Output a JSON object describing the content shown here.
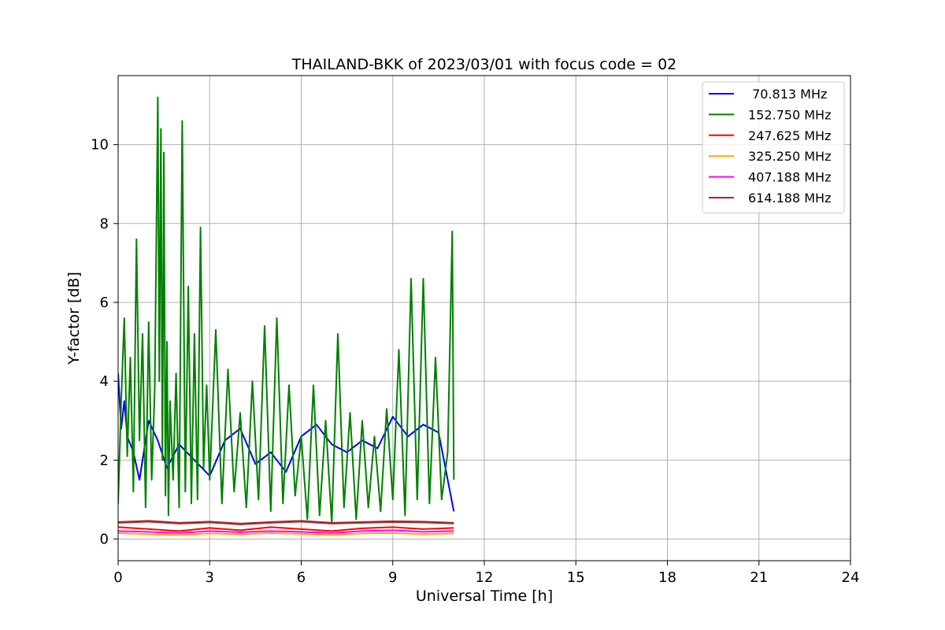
{
  "chart_data": {
    "type": "line",
    "title": "THAILAND-BKK of 2023/03/01 with focus code = 02",
    "xlabel": "Universal Time [h]",
    "ylabel": "Y-factor [dB]",
    "xlim": [
      0,
      24
    ],
    "ylim": [
      -0.55,
      11.75
    ],
    "xticks": [
      "0",
      "3",
      "6",
      "9",
      "12",
      "15",
      "18",
      "21",
      "24"
    ],
    "xtick_values": [
      0,
      3,
      6,
      9,
      12,
      15,
      18,
      21,
      24
    ],
    "yticks": [
      "0",
      "2",
      "4",
      "6",
      "8",
      "10"
    ],
    "ytick_values": [
      0,
      2,
      4,
      6,
      8,
      10
    ],
    "grid": true,
    "legend_position": "top-right",
    "series": [
      {
        "name": " 70.813 MHz",
        "color": "#0000ff",
        "x": [
          0,
          0.1,
          0.2,
          0.3,
          0.5,
          0.7,
          1.0,
          1.3,
          1.6,
          2.0,
          2.5,
          3.0,
          3.5,
          4.0,
          4.5,
          5.0,
          5.5,
          6.0,
          6.5,
          7.0,
          7.5,
          8.0,
          8.5,
          9.0,
          9.5,
          10.0,
          10.5,
          11.0
        ],
        "values": [
          4.2,
          2.8,
          3.5,
          2.6,
          2.2,
          1.5,
          3.0,
          2.5,
          1.8,
          2.4,
          2.0,
          1.6,
          2.5,
          2.8,
          1.9,
          2.2,
          1.7,
          2.6,
          2.9,
          2.4,
          2.2,
          2.5,
          2.3,
          3.1,
          2.6,
          2.9,
          2.7,
          0.7
        ]
      },
      {
        "name": "152.750 MHz",
        "color": "#008000",
        "x": [
          0,
          0.1,
          0.2,
          0.3,
          0.4,
          0.5,
          0.6,
          0.7,
          0.8,
          0.9,
          1.0,
          1.1,
          1.2,
          1.3,
          1.35,
          1.4,
          1.45,
          1.5,
          1.55,
          1.6,
          1.65,
          1.7,
          1.8,
          1.9,
          2.0,
          2.1,
          2.2,
          2.3,
          2.4,
          2.5,
          2.6,
          2.7,
          2.8,
          2.9,
          3.0,
          3.2,
          3.4,
          3.6,
          3.8,
          4.0,
          4.2,
          4.4,
          4.6,
          4.8,
          5.0,
          5.2,
          5.4,
          5.6,
          5.8,
          6.0,
          6.2,
          6.4,
          6.6,
          6.8,
          7.0,
          7.2,
          7.4,
          7.6,
          7.8,
          8.0,
          8.2,
          8.4,
          8.6,
          8.8,
          9.0,
          9.2,
          9.4,
          9.6,
          9.8,
          10.0,
          10.2,
          10.4,
          10.6,
          10.8,
          10.95,
          11.0
        ],
        "values": [
          0.9,
          3.5,
          5.6,
          2.1,
          4.6,
          1.2,
          7.6,
          2.5,
          5.2,
          0.8,
          5.5,
          1.5,
          3.8,
          11.2,
          4.0,
          10.4,
          2.0,
          9.8,
          1.1,
          5.0,
          0.6,
          3.5,
          1.5,
          4.2,
          0.8,
          10.6,
          1.2,
          6.4,
          0.9,
          5.2,
          1.0,
          7.9,
          1.8,
          3.9,
          1.5,
          5.3,
          0.9,
          4.3,
          1.2,
          3.2,
          0.8,
          4.0,
          1.0,
          5.4,
          0.7,
          5.6,
          0.9,
          3.9,
          1.1,
          2.6,
          0.5,
          3.9,
          0.6,
          3.0,
          0.4,
          5.2,
          0.8,
          3.2,
          0.5,
          3.0,
          0.8,
          2.6,
          0.7,
          3.3,
          1.0,
          4.8,
          0.6,
          6.6,
          1.0,
          6.6,
          0.9,
          4.6,
          1.0,
          2.2,
          7.8,
          1.5
        ]
      },
      {
        "name": "247.625 MHz",
        "color": "#ff0000",
        "x": [
          0,
          1,
          2,
          3,
          4,
          5,
          6,
          7,
          8,
          9,
          10,
          11
        ],
        "values": [
          0.3,
          0.25,
          0.2,
          0.28,
          0.22,
          0.3,
          0.25,
          0.2,
          0.27,
          0.3,
          0.25,
          0.28
        ]
      },
      {
        "name": "325.250 MHz",
        "color": "#ffa500",
        "x": [
          0,
          1,
          2,
          3,
          4,
          5,
          6,
          7,
          8,
          9,
          10,
          11
        ],
        "values": [
          0.15,
          0.12,
          0.1,
          0.14,
          0.12,
          0.15,
          0.13,
          0.1,
          0.14,
          0.15,
          0.12,
          0.14
        ]
      },
      {
        "name": "407.188 MHz",
        "color": "#ff00ff",
        "x": [
          0,
          1,
          2,
          3,
          4,
          5,
          6,
          7,
          8,
          9,
          10,
          11
        ],
        "values": [
          0.2,
          0.18,
          0.15,
          0.2,
          0.17,
          0.2,
          0.18,
          0.15,
          0.2,
          0.22,
          0.18,
          0.2
        ]
      },
      {
        "name": "614.188 MHz",
        "color": "#a52a2a",
        "x": [
          0,
          1,
          2,
          3,
          4,
          5,
          6,
          7,
          8,
          9,
          10,
          11
        ],
        "values": [
          0.42,
          0.45,
          0.4,
          0.43,
          0.38,
          0.42,
          0.45,
          0.4,
          0.42,
          0.44,
          0.43,
          0.4
        ]
      }
    ]
  }
}
